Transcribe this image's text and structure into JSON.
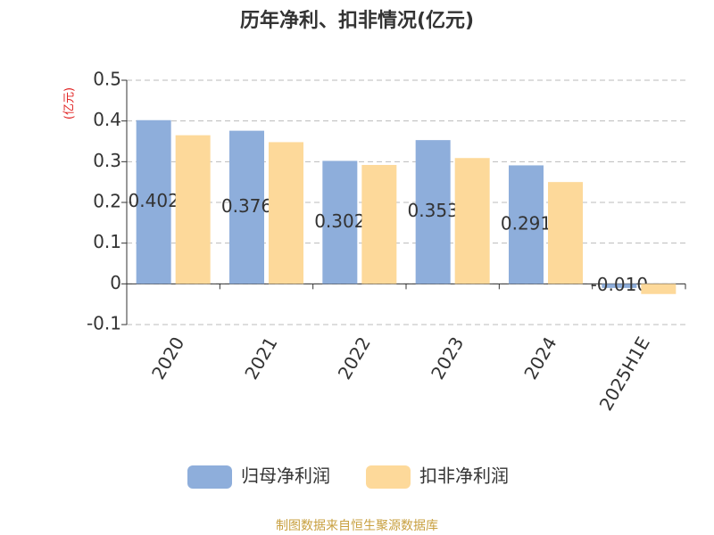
{
  "chart_data": {
    "type": "bar",
    "title": "历年净利、扣非情况(亿元)",
    "y_label": "(亿元)",
    "categories": [
      "2020",
      "2021",
      "2022",
      "2023",
      "2024",
      "2025H1E"
    ],
    "series": [
      {
        "name": "归母净利润",
        "color": "#8eaedb",
        "values": [
          0.402,
          0.376,
          0.302,
          0.353,
          0.291,
          -0.01
        ],
        "value_labels": [
          "0.402",
          "0.376",
          "0.302",
          "0.353",
          "0.291",
          "-0.010"
        ]
      },
      {
        "name": "扣非净利润",
        "color": "#fdd99a",
        "values": [
          0.365,
          0.348,
          0.292,
          0.309,
          0.25,
          -0.025
        ]
      }
    ],
    "ylim": [
      -0.1,
      0.5
    ],
    "yticks": [
      -0.1,
      0,
      0.1,
      0.2,
      0.3,
      0.4,
      0.5
    ],
    "grid": true,
    "source": "制图数据来自恒生聚源数据库"
  }
}
